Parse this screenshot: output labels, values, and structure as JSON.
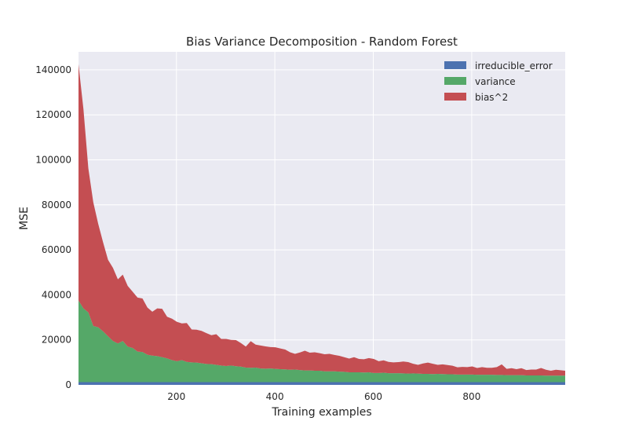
{
  "chart_data": {
    "type": "area",
    "stacked": true,
    "title": "Bias Variance Decomposition - Random Forest",
    "xlabel": "Training examples",
    "ylabel": "MSE",
    "xlim": [
      1,
      990
    ],
    "ylim": [
      0,
      148000
    ],
    "x_ticks": [
      200,
      400,
      600,
      800
    ],
    "y_ticks": [
      0,
      20000,
      40000,
      60000,
      80000,
      100000,
      120000,
      140000
    ],
    "grid": true,
    "legend_position": "top-right",
    "x": [
      1,
      11,
      21,
      31,
      41,
      51,
      61,
      71,
      81,
      91,
      101,
      111,
      121,
      131,
      141,
      151,
      161,
      171,
      181,
      191,
      201,
      211,
      221,
      231,
      241,
      251,
      261,
      271,
      281,
      291,
      301,
      311,
      321,
      331,
      341,
      351,
      361,
      371,
      381,
      391,
      401,
      411,
      421,
      431,
      441,
      451,
      461,
      471,
      481,
      491,
      501,
      511,
      521,
      531,
      541,
      551,
      561,
      571,
      581,
      591,
      601,
      611,
      621,
      631,
      641,
      651,
      661,
      671,
      681,
      691,
      701,
      711,
      721,
      731,
      741,
      751,
      761,
      771,
      781,
      791,
      801,
      811,
      821,
      831,
      841,
      851,
      861,
      871,
      881,
      891,
      901,
      911,
      921,
      931,
      941,
      951,
      961,
      971,
      981,
      990
    ],
    "series": [
      {
        "name": "irreducible_error",
        "color": "#4c72b0",
        "values": [
          1200,
          1200,
          1200,
          1200,
          1200,
          1200,
          1200,
          1200,
          1200,
          1200,
          1200,
          1200,
          1200,
          1200,
          1200,
          1200,
          1200,
          1200,
          1200,
          1200,
          1200,
          1200,
          1200,
          1200,
          1200,
          1200,
          1200,
          1200,
          1200,
          1200,
          1200,
          1200,
          1200,
          1200,
          1200,
          1200,
          1200,
          1200,
          1200,
          1200,
          1200,
          1200,
          1200,
          1200,
          1200,
          1200,
          1200,
          1200,
          1200,
          1200,
          1200,
          1200,
          1200,
          1200,
          1200,
          1200,
          1200,
          1200,
          1200,
          1200,
          1200,
          1200,
          1200,
          1200,
          1200,
          1200,
          1200,
          1200,
          1200,
          1200,
          1200,
          1200,
          1200,
          1200,
          1200,
          1200,
          1200,
          1200,
          1200,
          1200,
          1200,
          1200,
          1200,
          1200,
          1200,
          1200,
          1200,
          1200,
          1200,
          1200,
          1200,
          1200,
          1200,
          1200,
          1200,
          1200,
          1200,
          1200,
          1200,
          1200
        ]
      },
      {
        "name": "variance",
        "color": "#55a868",
        "values": [
          36300,
          32800,
          31000,
          25000,
          24400,
          22600,
          20400,
          18300,
          17200,
          18300,
          15800,
          15200,
          13600,
          13400,
          12200,
          11800,
          11600,
          11100,
          10600,
          9800,
          9300,
          9800,
          9000,
          8800,
          8700,
          8400,
          8100,
          8000,
          7700,
          7400,
          7200,
          7400,
          7100,
          6900,
          6500,
          6400,
          6500,
          6100,
          6000,
          6100,
          5900,
          5800,
          5700,
          5500,
          5600,
          5400,
          5200,
          5200,
          5100,
          5100,
          4800,
          4800,
          4800,
          4700,
          4600,
          4400,
          4400,
          4400,
          4300,
          4400,
          4100,
          4100,
          4200,
          4000,
          4000,
          4000,
          3900,
          3800,
          3900,
          3800,
          3700,
          3700,
          3600,
          3700,
          3600,
          3500,
          3500,
          3400,
          3400,
          3400,
          3400,
          3300,
          3300,
          3300,
          3300,
          3200,
          3200,
          3100,
          3100,
          3100,
          3100,
          3000,
          3000,
          3000,
          3000,
          2900,
          2900,
          2900,
          2900,
          2900
        ]
      },
      {
        "name": "bias^2",
        "color": "#c44e52",
        "values": [
          105000,
          88600,
          64000,
          55000,
          46000,
          39500,
          34000,
          32500,
          28500,
          29500,
          27000,
          25000,
          24000,
          23800,
          21000,
          19500,
          21200,
          21500,
          18500,
          18400,
          17500,
          16300,
          17300,
          14600,
          14600,
          14400,
          13700,
          12900,
          13600,
          11800,
          12000,
          11400,
          11600,
          10500,
          9300,
          11800,
          10200,
          10200,
          9900,
          9500,
          9600,
          9200,
          8800,
          7800,
          7000,
          7800,
          8800,
          7900,
          8200,
          7800,
          7600,
          7800,
          7300,
          7000,
          6500,
          6100,
          6700,
          5900,
          5900,
          6300,
          6200,
          5200,
          5500,
          5000,
          4800,
          4900,
          5300,
          5100,
          4300,
          3900,
          4600,
          5000,
          4600,
          4000,
          4300,
          4100,
          3800,
          3200,
          3400,
          3300,
          3600,
          3000,
          3400,
          3100,
          3100,
          3500,
          4700,
          2800,
          3100,
          2700,
          3100,
          2400,
          2600,
          2600,
          3300,
          2600,
          2200,
          2600,
          2400,
          2200
        ]
      }
    ]
  }
}
